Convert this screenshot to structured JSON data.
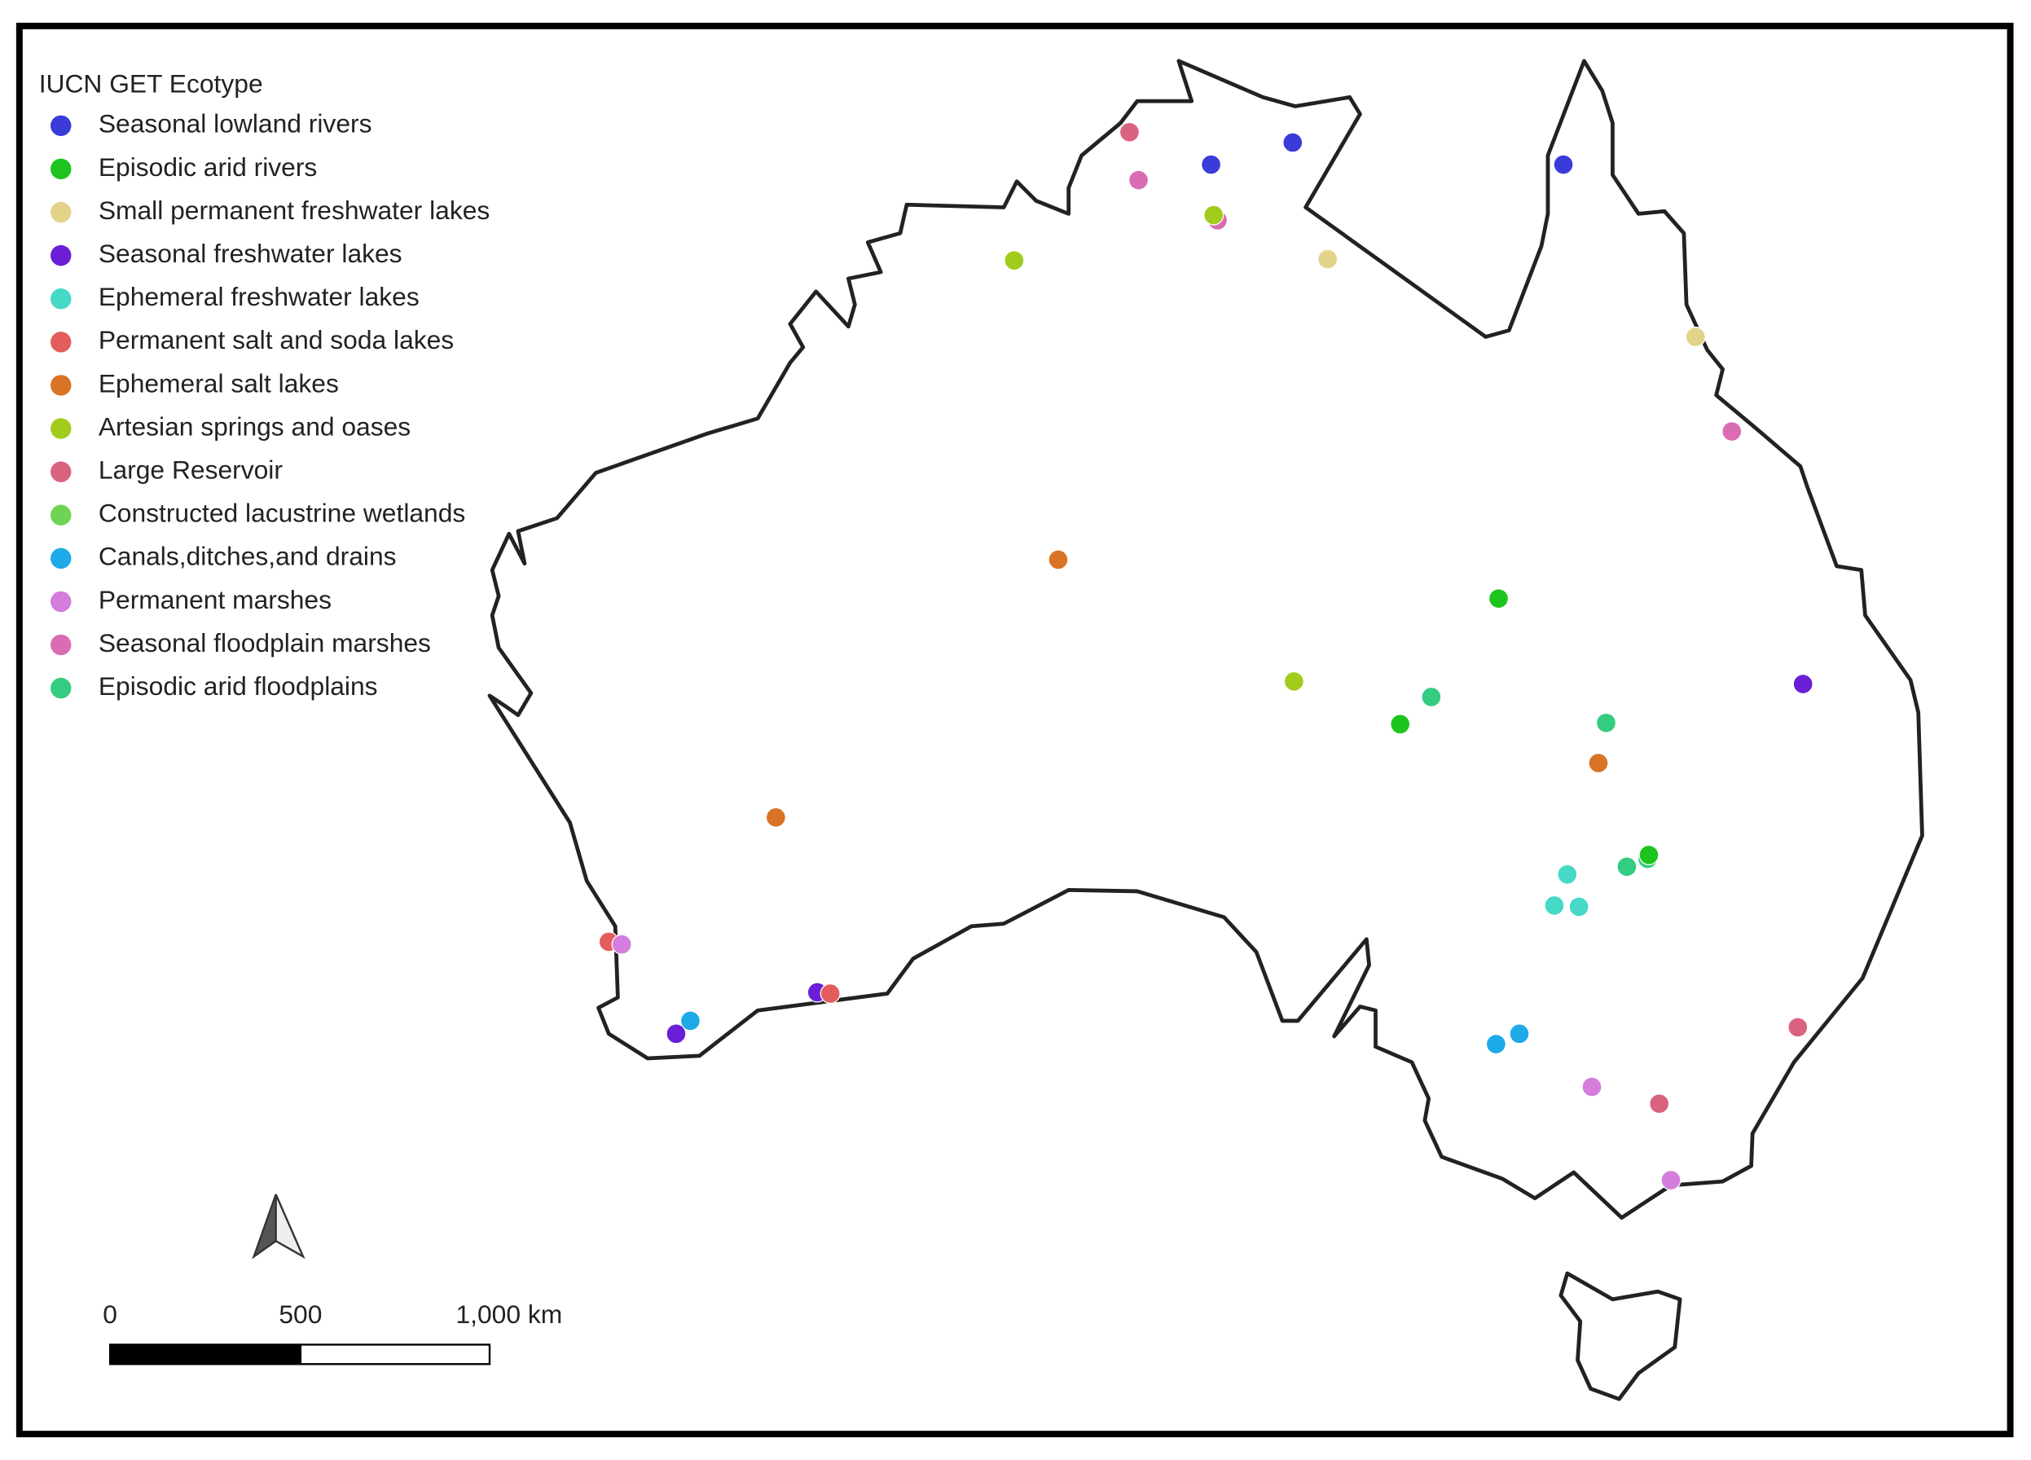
{
  "legend": {
    "title": "IUCN GET Ecotype",
    "items": [
      {
        "label": "Seasonal lowland rivers",
        "color": "#3b3bd9"
      },
      {
        "label": "Episodic arid rivers",
        "color": "#1dc41d"
      },
      {
        "label": "Small permanent freshwater lakes",
        "color": "#e3d38a"
      },
      {
        "label": "Seasonal freshwater lakes",
        "color": "#6a1ed6"
      },
      {
        "label": "Ephemeral freshwater lakes",
        "color": "#45d9c6"
      },
      {
        "label": "Permanent salt and soda lakes",
        "color": "#e35d5d"
      },
      {
        "label": "Ephemeral salt lakes",
        "color": "#d97325"
      },
      {
        "label": "Artesian springs and oases",
        "color": "#a1cc1c"
      },
      {
        "label": "Large Reservoir",
        "color": "#d9637f"
      },
      {
        "label": "Constructed lacustrine wetlands",
        "color": "#6ed453"
      },
      {
        "label": "Canals,ditches,and drains",
        "color": "#1ea9e8"
      },
      {
        "label": "Permanent marshes",
        "color": "#d47ddc"
      },
      {
        "label": "Seasonal floodplain marshes",
        "color": "#d96cb3"
      },
      {
        "label": "Episodic arid floodplains",
        "color": "#33cc80"
      }
    ]
  },
  "scale_bar": {
    "labels": [
      "0",
      "500",
      "1,000 km"
    ]
  }
}
